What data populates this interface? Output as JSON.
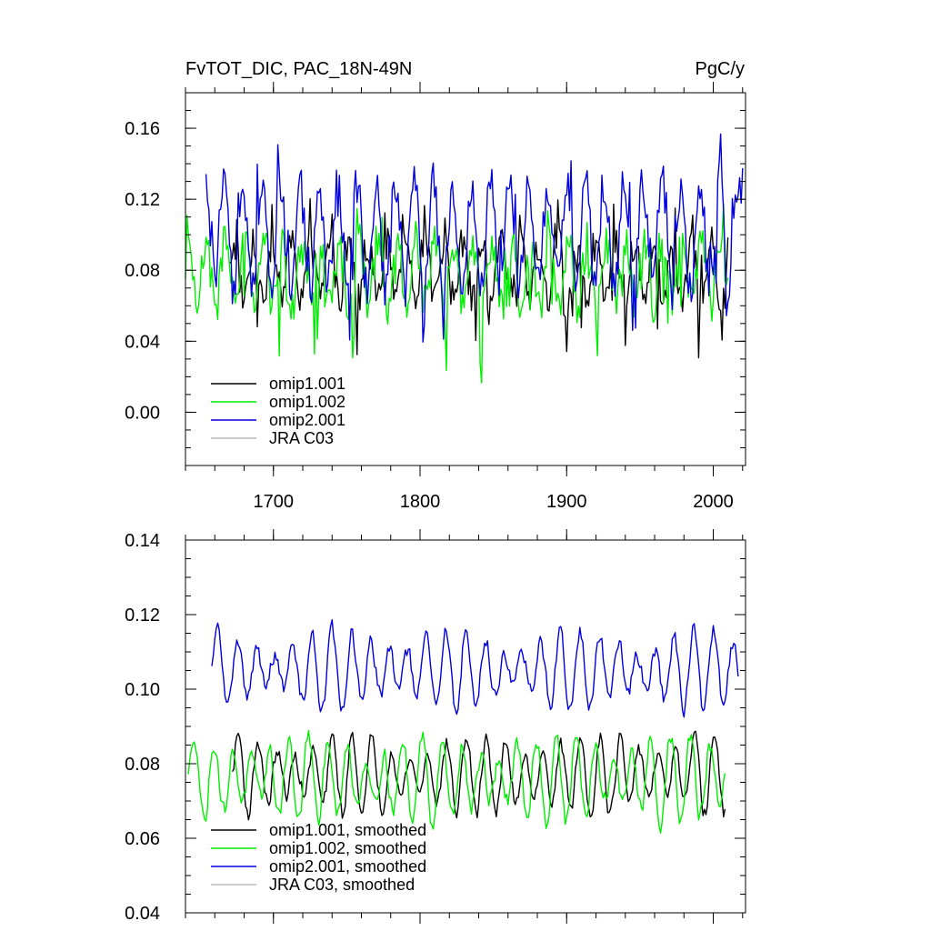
{
  "chart_data": [
    {
      "type": "line",
      "title_left": "FvTOT_DIC, PAC_18N-49N",
      "title_right": "PgC/y",
      "xlim": [
        1640,
        2022
      ],
      "ylim": [
        -0.03,
        0.18
      ],
      "yticks": [
        0.0,
        0.04,
        0.08,
        0.12,
        0.16
      ],
      "ytick_labels": [
        "0.00",
        "0.04",
        "0.08",
        "0.12",
        "0.16"
      ],
      "xticks": [
        1700,
        1800,
        1900,
        2000
      ],
      "xtick_labels": [
        "1700",
        "1800",
        "1900",
        "2000"
      ],
      "legend": [
        "omip1.001",
        "omip1.002",
        "omip2.001",
        "JRA C03"
      ],
      "series": [
        {
          "name": "omip1.001",
          "color": "#000000",
          "start": 1670,
          "end": 2010,
          "mean": 0.08,
          "amp": 0.016,
          "noise": 0.01,
          "low_dip": 0.02
        },
        {
          "name": "omip1.002",
          "color": "#00ee00",
          "start": 1640,
          "end": 2010,
          "mean": 0.078,
          "amp": 0.018,
          "noise": 0.012,
          "low_dip": 0.025
        },
        {
          "name": "omip2.001",
          "color": "#0000dd",
          "start": 1654,
          "end": 2020,
          "mean": 0.1,
          "amp": 0.03,
          "noise": 0.012,
          "low_dip": 0.02
        },
        {
          "name": "JRA C03",
          "color": "#bbbbbb",
          "start": null,
          "end": null
        }
      ]
    },
    {
      "type": "line",
      "xlim": [
        1640,
        2022
      ],
      "ylim": [
        0.04,
        0.14
      ],
      "yticks": [
        0.04,
        0.06,
        0.08,
        0.1,
        0.12,
        0.14
      ],
      "ytick_labels": [
        "0.04",
        "0.06",
        "0.08",
        "0.10",
        "0.12",
        "0.14"
      ],
      "xticks": [
        1700,
        1800,
        1900,
        2000
      ],
      "legend": [
        "omip1.001, smoothed",
        "omip1.002, smoothed",
        "omip2.001, smoothed",
        "JRA C03, smoothed"
      ],
      "series": [
        {
          "name": "omip1.001, smoothed",
          "color": "#000000",
          "start": 1672,
          "end": 2008,
          "mean": 0.077,
          "amp": 0.009
        },
        {
          "name": "omip1.002, smoothed",
          "color": "#00ee00",
          "start": 1642,
          "end": 2008,
          "mean": 0.076,
          "amp": 0.01
        },
        {
          "name": "omip2.001, smoothed",
          "color": "#0000dd",
          "start": 1658,
          "end": 2017,
          "mean": 0.105,
          "amp": 0.009
        },
        {
          "name": "JRA C03, smoothed",
          "color": "#bbbbbb",
          "start": null,
          "end": null
        }
      ]
    }
  ]
}
